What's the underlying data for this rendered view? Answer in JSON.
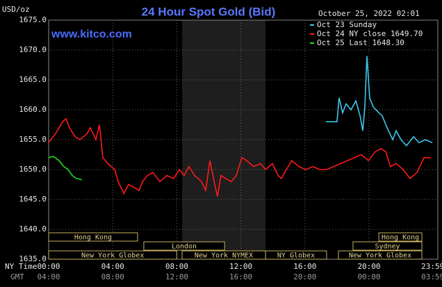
{
  "chart_data": {
    "type": "line",
    "title": "24 Hour Spot Gold (Bid)",
    "y_label": "USD/oz",
    "watermark": "www.kitco.com",
    "timestamp": "October 25, 2022 02:01",
    "x_label": "NY Time",
    "x2_label": "GMT",
    "xlim": [
      0,
      24
    ],
    "ylim": [
      1635,
      1675
    ],
    "yticks": [
      {
        "value": 1635,
        "label": "1635.0"
      },
      {
        "value": 1640,
        "label": "1640.0"
      },
      {
        "value": 1645,
        "label": "1645.0"
      },
      {
        "value": 1650,
        "label": "1650.0"
      },
      {
        "value": 1655,
        "label": "1655.0"
      },
      {
        "value": 1660,
        "label": "1660.0"
      },
      {
        "value": 1665,
        "label": "1665.0"
      },
      {
        "value": 1670,
        "label": "1670.0"
      },
      {
        "value": 1675,
        "label": "1675.0"
      }
    ],
    "xticks": [
      {
        "value": 0,
        "label": "00:00"
      },
      {
        "value": 4,
        "label": "04:00"
      },
      {
        "value": 8,
        "label": "08:00"
      },
      {
        "value": 12,
        "label": "12:00"
      },
      {
        "value": 16,
        "label": "16:00"
      },
      {
        "value": 20,
        "label": "20:00"
      },
      {
        "value": 23.98,
        "label": "23:59"
      }
    ],
    "x2tick_labels": [
      "04:00",
      "08:00",
      "12:00",
      "16:00",
      "20:00",
      "00:00",
      "03:59"
    ],
    "grid": true,
    "series": [
      {
        "name": "Oct 23 Sunday",
        "color": "#3fc8f0",
        "x": [
          17.31,
          18.0,
          18.13,
          18.35,
          18.57,
          18.87,
          19.18,
          19.44,
          19.61,
          19.74,
          19.87,
          20.04,
          20.26,
          20.61,
          20.82,
          21.13,
          21.48,
          21.69,
          22.0,
          22.34,
          22.78,
          23.12,
          23.51,
          23.95
        ],
        "values": [
          1658,
          1658,
          1662,
          1659.5,
          1661,
          1660,
          1661.5,
          1659,
          1656.5,
          1660.5,
          1669,
          1662,
          1660.5,
          1659.5,
          1659,
          1657,
          1655,
          1656.5,
          1655,
          1654,
          1655.5,
          1654.5,
          1655,
          1654.5
        ]
      },
      {
        "name": "Oct 24 NY close 1649.70",
        "color": "#ff1a1a",
        "x": [
          0,
          0.43,
          0.87,
          1.08,
          1.3,
          1.65,
          1.95,
          2.39,
          2.6,
          2.95,
          3.17,
          3.38,
          3.69,
          4.12,
          4.34,
          4.69,
          4.99,
          5.34,
          5.64,
          5.86,
          6.16,
          6.51,
          6.94,
          7.38,
          7.81,
          8.16,
          8.46,
          8.76,
          9.11,
          9.54,
          9.8,
          10.07,
          10.33,
          10.54,
          10.76,
          11.06,
          11.41,
          11.71,
          12.06,
          12.36,
          12.8,
          13.23,
          13.54,
          13.97,
          14.32,
          14.53,
          14.84,
          15.18,
          15.62,
          16.05,
          16.49,
          16.92,
          17.35,
          17.79,
          18.22,
          18.66,
          19.09,
          19.52,
          19.96,
          20.39,
          20.74,
          21.04,
          21.34,
          21.69,
          22.13,
          22.56,
          22.99,
          23.43,
          23.86
        ],
        "values": [
          1654.5,
          1656,
          1658,
          1658.5,
          1657,
          1655.5,
          1655,
          1656,
          1657,
          1655,
          1657.5,
          1652,
          1651,
          1650,
          1648,
          1646,
          1647.5,
          1647,
          1646.5,
          1648,
          1649,
          1649.5,
          1648,
          1649,
          1648.5,
          1650,
          1649,
          1650.5,
          1649,
          1648,
          1646.5,
          1651.5,
          1648,
          1645.5,
          1649,
          1648.5,
          1648,
          1649,
          1652,
          1651.5,
          1650.5,
          1651,
          1650,
          1651,
          1649,
          1648.5,
          1650,
          1651.5,
          1650.5,
          1650,
          1650.5,
          1650,
          1650,
          1650.5,
          1651,
          1651.5,
          1652,
          1652.5,
          1651.5,
          1653,
          1653.5,
          1653,
          1650.5,
          1651,
          1650,
          1648.5,
          1649.5,
          1652,
          1652
        ]
      },
      {
        "name": "Oct 25 Last 1648.30",
        "color": "#22dd22",
        "x": [
          0,
          0.3,
          0.65,
          0.95,
          1.21,
          1.48,
          1.74,
          2.08
        ],
        "values": [
          1652,
          1652.2,
          1651.5,
          1650.5,
          1650,
          1649,
          1648.5,
          1648.3
        ]
      }
    ],
    "sessions": [
      {
        "label": "Hong Kong",
        "row": 0,
        "start": 0,
        "end": 5.55
      },
      {
        "label": "London",
        "row": 1,
        "start": 5.94,
        "end": 10.98
      },
      {
        "label": "New York Globex",
        "row": 2,
        "start": 0,
        "end": 8.0
      },
      {
        "label": "New York NYMEX",
        "row": 2,
        "start": 8.33,
        "end": 13.54
      },
      {
        "label": "NY Globex",
        "row": 2,
        "start": 13.54,
        "end": 17.35
      },
      {
        "label": "Hong Kong",
        "row": 0,
        "start": 20.61,
        "end": 23.3
      },
      {
        "label": "Sydney",
        "row": 1,
        "start": 19.0,
        "end": 23.3
      },
      {
        "label": "New York Globex",
        "row": 2,
        "start": 18.09,
        "end": 23.3
      }
    ]
  }
}
